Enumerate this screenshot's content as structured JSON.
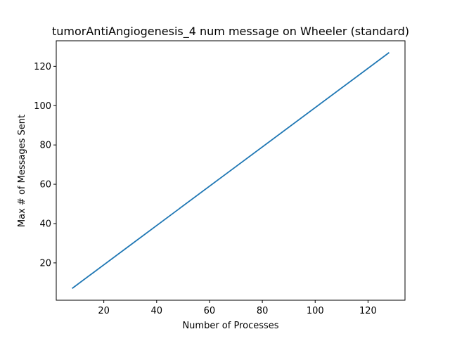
{
  "chart_data": {
    "type": "line",
    "title": "tumorAntiAngiogenesis_4 num message on Wheeler (standard)",
    "xlabel": "Number of Processes",
    "ylabel": "Max # of Messages Sent",
    "xlim": [
      2,
      134
    ],
    "ylim": [
      1,
      133
    ],
    "xticks": [
      20,
      40,
      60,
      80,
      100,
      120
    ],
    "yticks": [
      20,
      40,
      60,
      80,
      100,
      120
    ],
    "grid": false,
    "series": [
      {
        "color": "#1f77b4",
        "x": [
          8,
          16,
          32,
          64,
          128
        ],
        "y": [
          7,
          15,
          31,
          63,
          127
        ]
      }
    ]
  }
}
